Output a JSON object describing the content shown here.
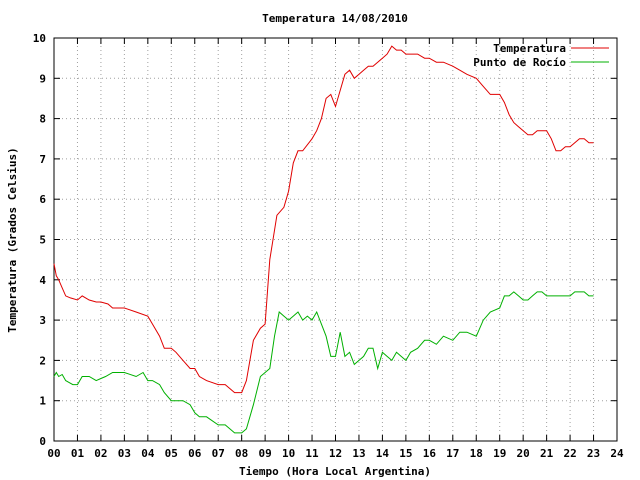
{
  "chart_data": {
    "type": "line",
    "title": "Temperatura 14/08/2010",
    "xlabel": "Tiempo (Hora Local Argentina)",
    "ylabel": "Temperatura (Grados Celsius)",
    "xlim": [
      0,
      24
    ],
    "ylim": [
      0,
      10
    ],
    "grid": true,
    "legend_position": "top-right",
    "x_tick_labels": [
      "00",
      "01",
      "02",
      "03",
      "04",
      "05",
      "06",
      "07",
      "08",
      "09",
      "10",
      "11",
      "12",
      "13",
      "14",
      "15",
      "16",
      "17",
      "18",
      "19",
      "20",
      "21",
      "22",
      "23",
      "24"
    ],
    "y_tick_labels": [
      "0",
      "1",
      "2",
      "3",
      "4",
      "5",
      "6",
      "7",
      "8",
      "9",
      "10"
    ],
    "series": [
      {
        "name": "Temperatura",
        "color": "#e00000",
        "x": [
          0,
          0.1,
          0.2,
          0.35,
          0.5,
          0.7,
          1.0,
          1.2,
          1.5,
          1.8,
          2.0,
          2.3,
          2.5,
          3.0,
          3.5,
          4.0,
          4.2,
          4.5,
          4.7,
          5.0,
          5.2,
          5.5,
          5.8,
          6.0,
          6.2,
          6.5,
          7.0,
          7.3,
          7.5,
          7.7,
          8.0,
          8.2,
          8.5,
          8.8,
          9.0,
          9.2,
          9.5,
          9.8,
          10.0,
          10.2,
          10.4,
          10.6,
          11.0,
          11.2,
          11.4,
          11.6,
          11.8,
          12.0,
          12.2,
          12.4,
          12.6,
          12.8,
          13.0,
          13.2,
          13.4,
          13.6,
          13.8,
          14.0,
          14.2,
          14.4,
          14.6,
          14.8,
          15.0,
          15.2,
          15.5,
          15.8,
          16.0,
          16.3,
          16.6,
          17.0,
          17.3,
          17.6,
          18.0,
          18.3,
          18.6,
          19.0,
          19.2,
          19.4,
          19.6,
          19.8,
          20.0,
          20.2,
          20.4,
          20.6,
          20.8,
          21.0,
          21.2,
          21.4,
          21.6,
          21.8,
          22.0,
          22.2,
          22.4,
          22.6,
          22.8,
          23.0
        ],
        "y": [
          4.4,
          4.1,
          4.0,
          3.8,
          3.6,
          3.55,
          3.5,
          3.6,
          3.5,
          3.45,
          3.45,
          3.4,
          3.3,
          3.3,
          3.2,
          3.1,
          2.9,
          2.6,
          2.3,
          2.3,
          2.2,
          2.0,
          1.8,
          1.8,
          1.6,
          1.5,
          1.4,
          1.4,
          1.3,
          1.2,
          1.2,
          1.5,
          2.5,
          2.8,
          2.9,
          4.5,
          5.6,
          5.8,
          6.2,
          6.9,
          7.2,
          7.2,
          7.5,
          7.7,
          8.0,
          8.5,
          8.6,
          8.3,
          8.7,
          9.1,
          9.2,
          9.0,
          9.1,
          9.2,
          9.3,
          9.3,
          9.4,
          9.5,
          9.6,
          9.8,
          9.7,
          9.7,
          9.6,
          9.6,
          9.6,
          9.5,
          9.5,
          9.4,
          9.4,
          9.3,
          9.2,
          9.1,
          9.0,
          8.8,
          8.6,
          8.6,
          8.4,
          8.1,
          7.9,
          7.8,
          7.7,
          7.6,
          7.6,
          7.7,
          7.7,
          7.7,
          7.5,
          7.2,
          7.2,
          7.3,
          7.3,
          7.4,
          7.5,
          7.5,
          7.4,
          7.4
        ]
      },
      {
        "name": "Punto de Rocío",
        "color": "#00b000",
        "x": [
          0,
          0.1,
          0.2,
          0.35,
          0.5,
          0.8,
          1.0,
          1.2,
          1.5,
          1.8,
          2.0,
          2.2,
          2.5,
          3.0,
          3.5,
          3.8,
          4.0,
          4.2,
          4.5,
          4.7,
          5.0,
          5.2,
          5.5,
          5.8,
          6.0,
          6.2,
          6.5,
          7.0,
          7.3,
          7.5,
          7.7,
          8.0,
          8.2,
          8.5,
          8.8,
          9.0,
          9.2,
          9.4,
          9.6,
          9.8,
          10.0,
          10.2,
          10.4,
          10.6,
          10.8,
          11.0,
          11.2,
          11.4,
          11.6,
          11.8,
          12.0,
          12.2,
          12.4,
          12.6,
          12.8,
          13.0,
          13.2,
          13.4,
          13.6,
          13.8,
          14.0,
          14.2,
          14.4,
          14.6,
          14.8,
          15.0,
          15.2,
          15.5,
          15.8,
          16.0,
          16.3,
          16.6,
          17.0,
          17.3,
          17.6,
          18.0,
          18.3,
          18.6,
          19.0,
          19.2,
          19.4,
          19.6,
          19.8,
          20.0,
          20.2,
          20.4,
          20.6,
          20.8,
          21.0,
          21.2,
          21.4,
          21.6,
          21.8,
          22.0,
          22.2,
          22.4,
          22.6,
          22.8,
          23.0
        ],
        "y": [
          1.6,
          1.7,
          1.6,
          1.65,
          1.5,
          1.4,
          1.4,
          1.6,
          1.6,
          1.5,
          1.55,
          1.6,
          1.7,
          1.7,
          1.6,
          1.7,
          1.5,
          1.5,
          1.4,
          1.2,
          1.0,
          1.0,
          1.0,
          0.9,
          0.7,
          0.6,
          0.6,
          0.4,
          0.4,
          0.3,
          0.2,
          0.2,
          0.3,
          0.9,
          1.6,
          1.7,
          1.8,
          2.6,
          3.2,
          3.1,
          3.0,
          3.1,
          3.2,
          3.0,
          3.1,
          3.0,
          3.2,
          2.9,
          2.6,
          2.1,
          2.1,
          2.7,
          2.1,
          2.2,
          1.9,
          2.0,
          2.1,
          2.3,
          2.3,
          1.8,
          2.2,
          2.1,
          2.0,
          2.2,
          2.1,
          2.0,
          2.2,
          2.3,
          2.5,
          2.5,
          2.4,
          2.6,
          2.5,
          2.7,
          2.7,
          2.6,
          3.0,
          3.2,
          3.3,
          3.6,
          3.6,
          3.7,
          3.6,
          3.5,
          3.5,
          3.6,
          3.7,
          3.7,
          3.6,
          3.6,
          3.6,
          3.6,
          3.6,
          3.6,
          3.7,
          3.7,
          3.7,
          3.6,
          3.6
        ]
      }
    ]
  }
}
